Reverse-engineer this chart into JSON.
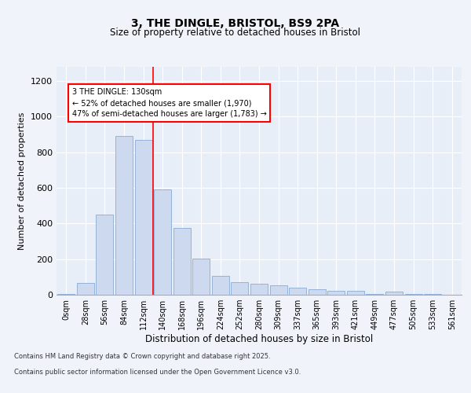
{
  "title": "3, THE DINGLE, BRISTOL, BS9 2PA",
  "subtitle": "Size of property relative to detached houses in Bristol",
  "xlabel": "Distribution of detached houses by size in Bristol",
  "ylabel": "Number of detached properties",
  "bar_color": "#ccd9ee",
  "bar_edge_color": "#8aaad4",
  "background_color": "#e8eef8",
  "grid_color": "#ffffff",
  "fig_facecolor": "#f0f4fa",
  "categories": [
    "0sqm",
    "28sqm",
    "56sqm",
    "84sqm",
    "112sqm",
    "140sqm",
    "168sqm",
    "196sqm",
    "224sqm",
    "252sqm",
    "280sqm",
    "309sqm",
    "337sqm",
    "365sqm",
    "393sqm",
    "421sqm",
    "449sqm",
    "477sqm",
    "505sqm",
    "533sqm",
    "561sqm"
  ],
  "values": [
    5,
    65,
    450,
    890,
    870,
    590,
    375,
    205,
    105,
    70,
    60,
    55,
    40,
    30,
    22,
    20,
    5,
    18,
    5,
    5,
    2
  ],
  "ylim": [
    0,
    1280
  ],
  "yticks": [
    0,
    200,
    400,
    600,
    800,
    1000,
    1200
  ],
  "annotation_text": "3 THE DINGLE: 130sqm\n← 52% of detached houses are smaller (1,970)\n47% of semi-detached houses are larger (1,783) →",
  "footer_line1": "Contains HM Land Registry data © Crown copyright and database right 2025.",
  "footer_line2": "Contains public sector information licensed under the Open Government Licence v3.0."
}
